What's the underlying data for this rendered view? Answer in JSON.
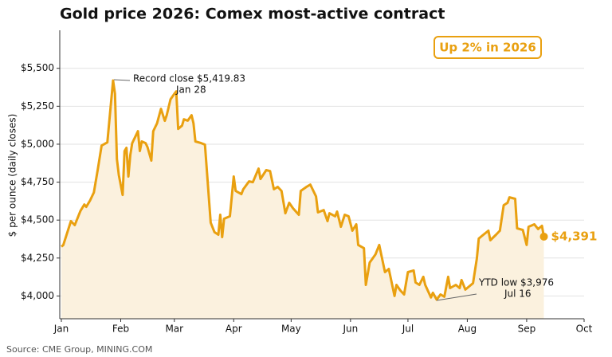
{
  "chart_data": {
    "type": "line",
    "title": "Gold price 2026: Comex most-active contract",
    "y_label": "$ per ounce (daily closes)",
    "source": "Source: CME Group, MINING.COM",
    "badge": "Up 2% in 2026",
    "end_label": "$4,391",
    "annotations": [
      {
        "text": "Record close $5,419.83",
        "date": "Jan 28"
      },
      {
        "text": "YTD low $3,976",
        "date": "Jul 16"
      }
    ],
    "color": "#e9a010",
    "fill_color": "#fbf1de",
    "grid": true,
    "x": [
      0,
      1,
      5,
      7,
      10,
      12,
      13,
      15,
      17,
      19,
      21,
      24,
      27,
      28,
      29,
      30,
      32,
      33,
      34,
      35,
      36,
      37,
      39,
      40,
      41,
      42,
      44,
      45,
      47,
      48,
      50,
      52,
      54,
      55,
      57,
      59,
      60,
      61,
      63,
      64,
      66,
      68,
      69,
      70,
      73,
      75,
      78,
      80,
      82,
      83,
      84,
      85,
      88,
      90,
      91,
      94,
      95,
      98,
      100,
      103,
      104,
      107,
      109,
      111,
      113,
      115,
      117,
      119,
      121,
      124,
      125,
      128,
      130,
      133,
      134,
      137,
      139,
      140,
      143,
      144,
      146,
      148,
      150,
      152,
      154,
      155,
      158,
      159,
      161,
      164,
      166,
      169,
      171,
      174,
      175,
      177,
      179,
      181,
      184,
      185,
      187,
      189,
      190,
      193,
      194,
      196,
      198,
      200,
      202,
      203,
      206,
      208,
      209,
      211,
      213,
      215,
      217,
      218,
      220,
      223,
      224,
      227,
      229,
      231,
      233,
      234,
      237,
      238,
      241,
      243,
      244,
      247,
      249,
      251,
      252
    ],
    "values": [
      4325,
      4335,
      4493,
      4467,
      4561,
      4603,
      4587,
      4629,
      4682,
      4834,
      4991,
      5012,
      5419.83,
      5332,
      4902,
      4797,
      4666,
      4955,
      4976,
      4787,
      4928,
      5007,
      5059,
      5086,
      4955,
      5018,
      5007,
      4981,
      4892,
      5086,
      5138,
      5233,
      5154,
      5191,
      5296,
      5332,
      5348,
      5101,
      5122,
      5164,
      5155,
      5191,
      5138,
      5018,
      5007,
      4997,
      4483,
      4420,
      4404,
      4535,
      4388,
      4509,
      4525,
      4787,
      4692,
      4671,
      4703,
      4755,
      4750,
      4839,
      4771,
      4829,
      4823,
      4703,
      4719,
      4692,
      4545,
      4614,
      4577,
      4535,
      4692,
      4719,
      4734,
      4656,
      4551,
      4566,
      4493,
      4545,
      4525,
      4556,
      4456,
      4535,
      4525,
      4430,
      4472,
      4336,
      4315,
      4073,
      4220,
      4273,
      4336,
      4157,
      4178,
      4000,
      4073,
      4037,
      4010,
      4157,
      4168,
      4089,
      4073,
      4126,
      4073,
      3990,
      4021,
      3976,
      4010,
      3995,
      4126,
      4052,
      4073,
      4052,
      4105,
      4042,
      4063,
      4084,
      4247,
      4378,
      4399,
      4430,
      4367,
      4404,
      4430,
      4598,
      4614,
      4650,
      4640,
      4446,
      4435,
      4336,
      4456,
      4472,
      4441,
      4462,
      4391
    ],
    "xlim": [
      0,
      273
    ],
    "xticks": [
      {
        "value": 0,
        "label": "Jan"
      },
      {
        "value": 31,
        "label": "Feb"
      },
      {
        "value": 59,
        "label": "Mar"
      },
      {
        "value": 90,
        "label": "Apr"
      },
      {
        "value": 120,
        "label": "May"
      },
      {
        "value": 151,
        "label": "Jun"
      },
      {
        "value": 181,
        "label": "Jul"
      },
      {
        "value": 212,
        "label": "Aug"
      },
      {
        "value": 243,
        "label": "Sep"
      },
      {
        "value": 273,
        "label": "Oct"
      }
    ],
    "ylim": [
      3850,
      5740
    ],
    "yticks": [
      {
        "value": 4000,
        "label": "$4,000"
      },
      {
        "value": 4250,
        "label": "$4,250"
      },
      {
        "value": 4500,
        "label": "$4,500"
      },
      {
        "value": 4750,
        "label": "$4,750"
      },
      {
        "value": 5000,
        "label": "$5,000"
      },
      {
        "value": 5250,
        "label": "$5,250"
      },
      {
        "value": 5500,
        "label": "$5,500"
      }
    ]
  }
}
